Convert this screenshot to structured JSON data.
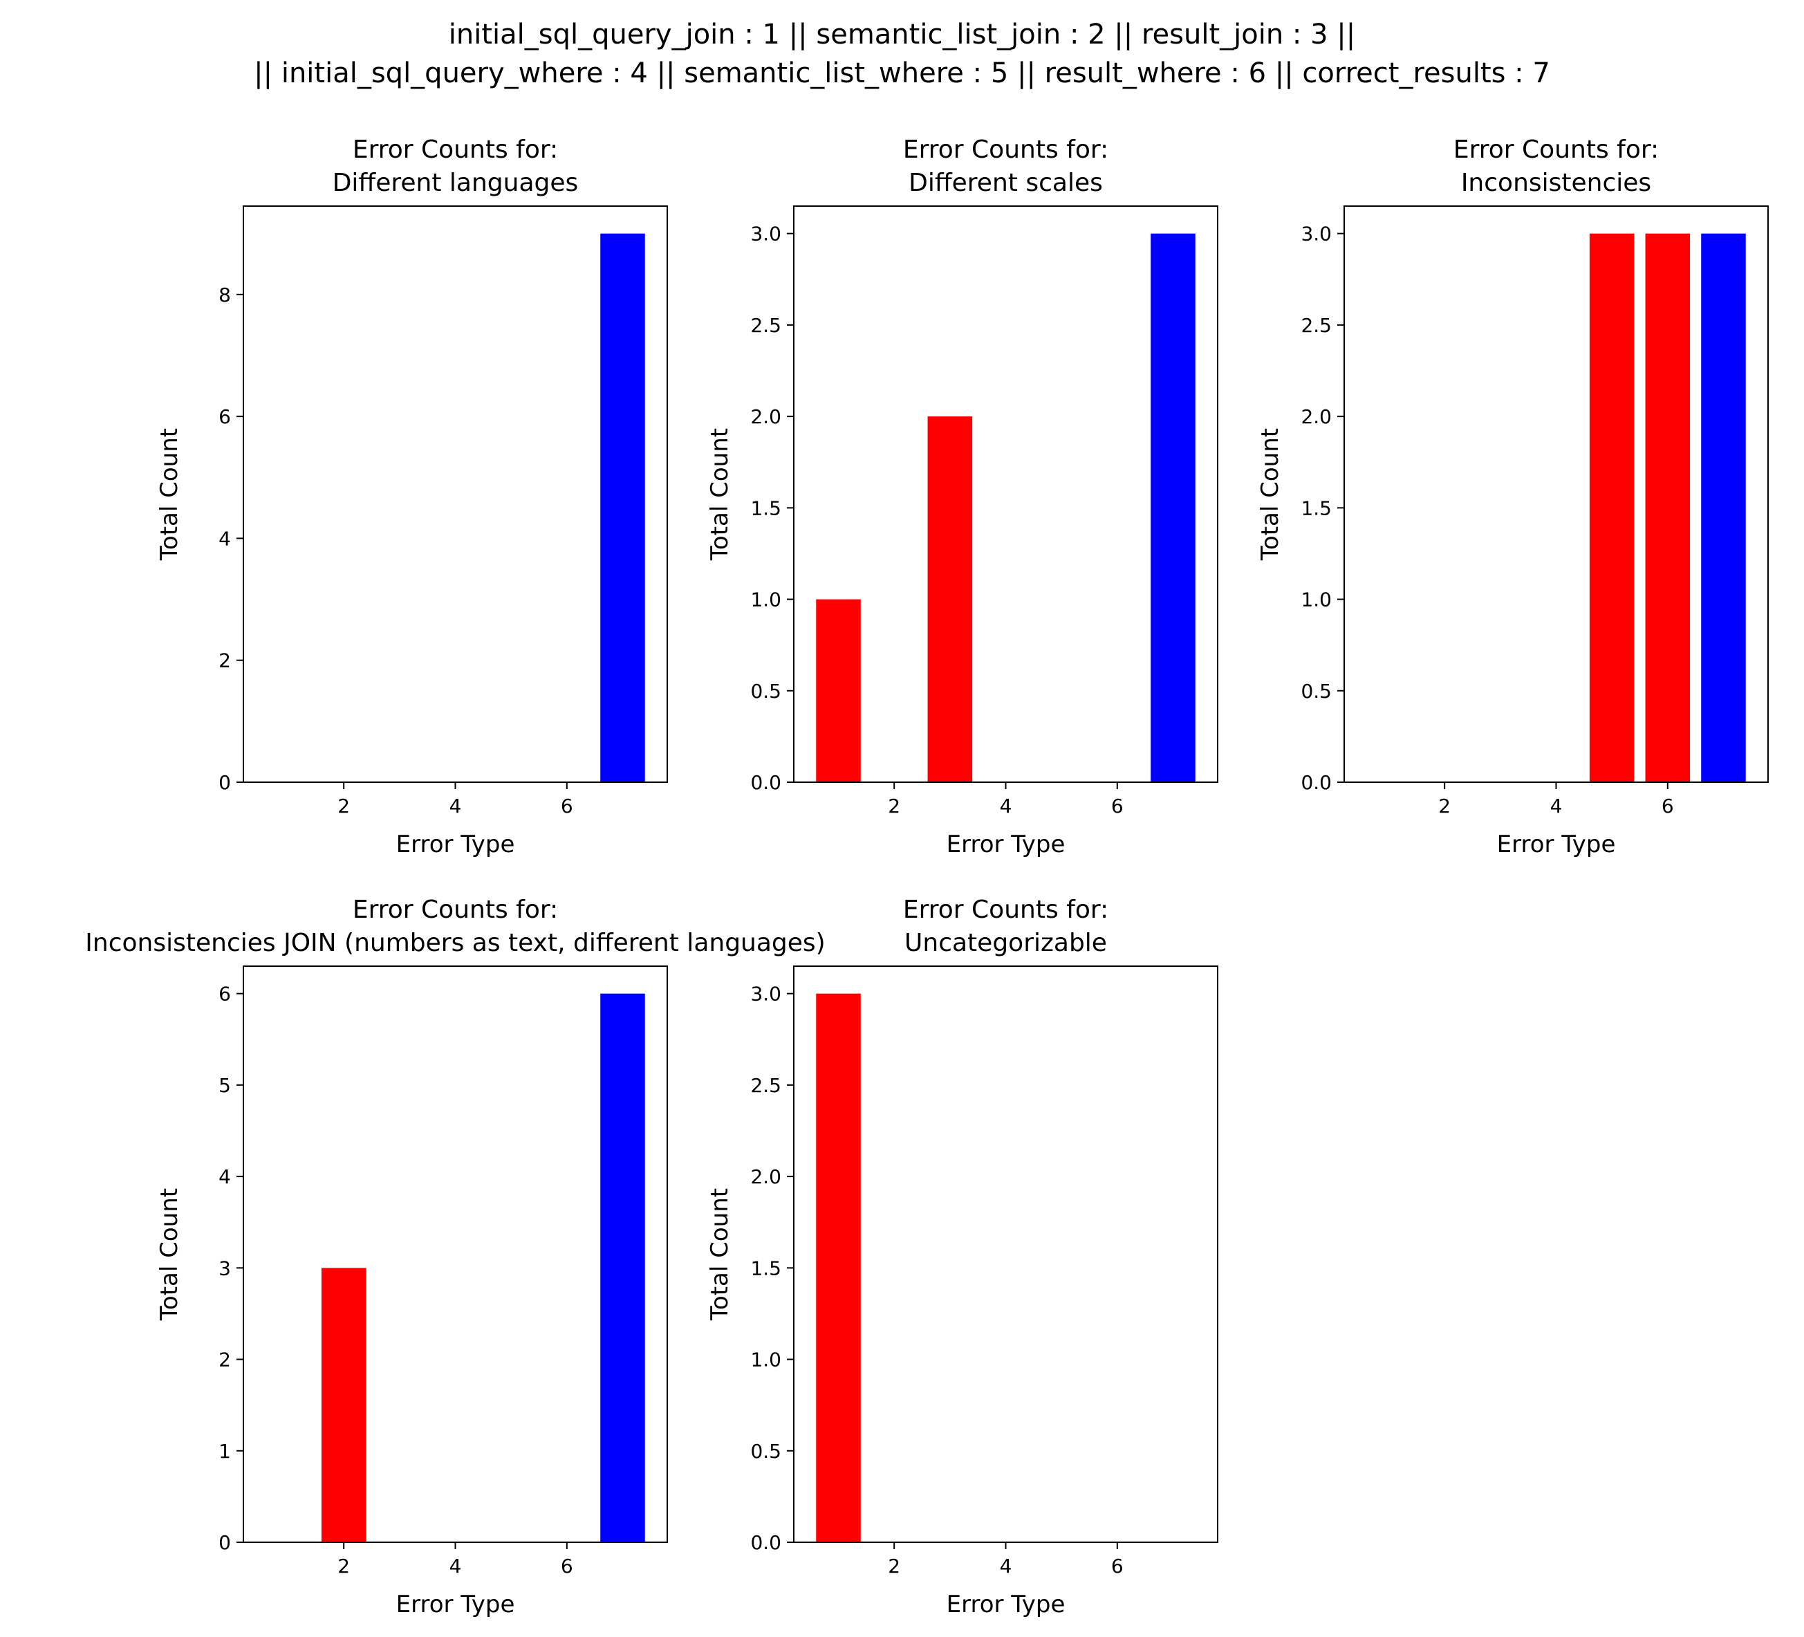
{
  "figure": {
    "suptitle_lines": [
      "initial_sql_query_join : 1 || semantic_list_join : 2 || result_join : 3 ||",
      "|| initial_sql_query_where : 4 || semantic_list_where : 5 || result_where : 6 || correct_results : 7"
    ]
  },
  "colors": {
    "error": "#ff0000",
    "correct": "#0000ff"
  },
  "chart_data": [
    {
      "type": "bar",
      "title_lines": [
        "Error Counts for:",
        "Different languages"
      ],
      "xlabel": "Error Type",
      "ylabel": "Total Count",
      "xlim": [
        0.2,
        7.8
      ],
      "ylim": [
        0,
        9.45
      ],
      "xticks": [
        2,
        4,
        6
      ],
      "xtick_labels": [
        "2",
        "4",
        "6"
      ],
      "yticks": [
        0,
        2,
        4,
        6,
        8
      ],
      "ytick_labels": [
        "0",
        "2",
        "4",
        "6",
        "8"
      ],
      "bars": [
        {
          "x": 7,
          "value": 9,
          "color": "#0000ff"
        }
      ]
    },
    {
      "type": "bar",
      "title_lines": [
        "Error Counts for:",
        "Different scales"
      ],
      "xlabel": "Error Type",
      "ylabel": "Total Count",
      "xlim": [
        0.2,
        7.8
      ],
      "ylim": [
        0,
        3.15
      ],
      "xticks": [
        2,
        4,
        6
      ],
      "xtick_labels": [
        "2",
        "4",
        "6"
      ],
      "yticks": [
        0,
        0.5,
        1,
        1.5,
        2,
        2.5,
        3
      ],
      "ytick_labels": [
        "0.0",
        "0.5",
        "1.0",
        "1.5",
        "2.0",
        "2.5",
        "3.0"
      ],
      "bars": [
        {
          "x": 1,
          "value": 1,
          "color": "#ff0000"
        },
        {
          "x": 3,
          "value": 2,
          "color": "#ff0000"
        },
        {
          "x": 7,
          "value": 3,
          "color": "#0000ff"
        }
      ]
    },
    {
      "type": "bar",
      "title_lines": [
        "Error Counts for:",
        "Inconsistencies"
      ],
      "xlabel": "Error Type",
      "ylabel": "Total Count",
      "xlim": [
        0.2,
        7.8
      ],
      "ylim": [
        0,
        3.15
      ],
      "xticks": [
        2,
        4,
        6
      ],
      "xtick_labels": [
        "2",
        "4",
        "6"
      ],
      "yticks": [
        0,
        0.5,
        1,
        1.5,
        2,
        2.5,
        3
      ],
      "ytick_labels": [
        "0.0",
        "0.5",
        "1.0",
        "1.5",
        "2.0",
        "2.5",
        "3.0"
      ],
      "bars": [
        {
          "x": 5,
          "value": 3,
          "color": "#ff0000"
        },
        {
          "x": 6,
          "value": 3,
          "color": "#ff0000"
        },
        {
          "x": 7,
          "value": 3,
          "color": "#0000ff"
        }
      ]
    },
    {
      "type": "bar",
      "title_lines": [
        "Error Counts for:",
        "Inconsistencies JOIN (numbers as text, different languages)"
      ],
      "xlabel": "Error Type",
      "ylabel": "Total Count",
      "xlim": [
        0.2,
        7.8
      ],
      "ylim": [
        0,
        6.3
      ],
      "xticks": [
        2,
        4,
        6
      ],
      "xtick_labels": [
        "2",
        "4",
        "6"
      ],
      "yticks": [
        0,
        1,
        2,
        3,
        4,
        5,
        6
      ],
      "ytick_labels": [
        "0",
        "1",
        "2",
        "3",
        "4",
        "5",
        "6"
      ],
      "bars": [
        {
          "x": 2,
          "value": 3,
          "color": "#ff0000"
        },
        {
          "x": 7,
          "value": 6,
          "color": "#0000ff"
        }
      ]
    },
    {
      "type": "bar",
      "title_lines": [
        "Error Counts for:",
        "Uncategorizable"
      ],
      "xlabel": "Error Type",
      "ylabel": "Total Count",
      "xlim": [
        0.2,
        7.8
      ],
      "ylim": [
        0,
        3.15
      ],
      "xticks": [
        2,
        4,
        6
      ],
      "xtick_labels": [
        "2",
        "4",
        "6"
      ],
      "yticks": [
        0,
        0.5,
        1,
        1.5,
        2,
        2.5,
        3
      ],
      "ytick_labels": [
        "0.0",
        "0.5",
        "1.0",
        "1.5",
        "2.0",
        "2.5",
        "3.0"
      ],
      "bars": [
        {
          "x": 1,
          "value": 3,
          "color": "#ff0000"
        }
      ]
    }
  ]
}
